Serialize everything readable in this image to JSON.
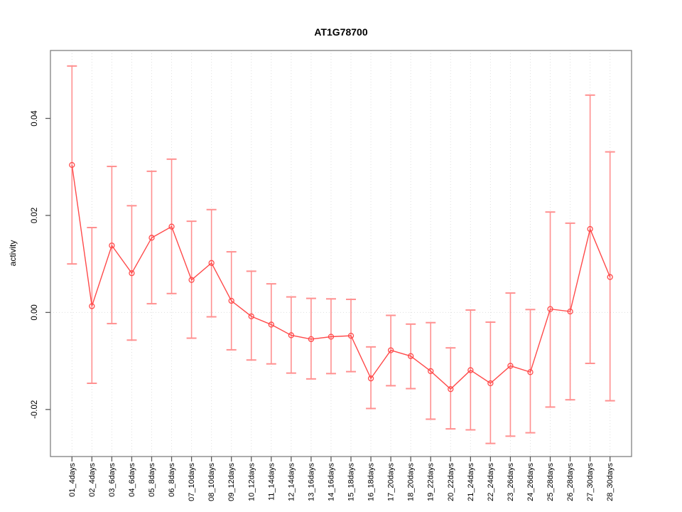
{
  "title": "AT1G78700",
  "chart_data": {
    "type": "line",
    "title": "AT1G78700",
    "xlabel": "",
    "ylabel": "activity",
    "legend_position": "none",
    "grid": "vertical dotted gridline per category plus dotted horizontal line at y=0",
    "marker": "open-circle",
    "error_bars": true,
    "categories": [
      "01_4days",
      "02_4days",
      "03_6days",
      "04_6days",
      "05_8days",
      "06_8days",
      "07_10days",
      "08_10days",
      "09_12days",
      "10_12days",
      "11_14days",
      "12_14days",
      "13_16days",
      "14_16days",
      "15_18days",
      "16_18days",
      "17_20days",
      "18_20days",
      "19_22days",
      "20_22days",
      "21_24days",
      "22_24days",
      "23_26days",
      "24_26days",
      "25_28days",
      "26_28days",
      "27_30days",
      "28_30days"
    ],
    "series": [
      {
        "name": "activity",
        "values": [
          0.0304,
          0.0013,
          0.0138,
          0.0081,
          0.0154,
          0.0177,
          0.0067,
          0.0102,
          0.0024,
          -0.0008,
          -0.0025,
          -0.0047,
          -0.0055,
          -0.005,
          -0.0048,
          -0.0136,
          -0.0078,
          -0.009,
          -0.0121,
          -0.0158,
          -0.0119,
          -0.0146,
          -0.011,
          -0.0123,
          0.0007,
          0.0002,
          0.0172,
          0.0073
        ],
        "error_high": [
          0.0508,
          0.0175,
          0.0301,
          0.022,
          0.0291,
          0.0316,
          0.0188,
          0.0212,
          0.0125,
          0.0085,
          0.0059,
          0.0032,
          0.0029,
          0.0028,
          0.0027,
          -0.0071,
          -0.0006,
          -0.0024,
          -0.0021,
          -0.0073,
          0.0005,
          -0.002,
          0.004,
          0.0006,
          0.0207,
          0.0184,
          0.0448,
          0.0331
        ],
        "error_low": [
          0.01,
          -0.0146,
          -0.0023,
          -0.0057,
          0.0018,
          0.0039,
          -0.0053,
          -0.0009,
          -0.0077,
          -0.0098,
          -0.0106,
          -0.0125,
          -0.0137,
          -0.0126,
          -0.0122,
          -0.0198,
          -0.0151,
          -0.0157,
          -0.022,
          -0.024,
          -0.0242,
          -0.027,
          -0.0255,
          -0.0248,
          -0.0195,
          -0.018,
          -0.0105,
          -0.0182
        ]
      }
    ],
    "ylim": [
      -0.0297,
      0.054
    ],
    "yticks": [
      -0.02,
      0.0,
      0.02,
      0.04
    ],
    "ytick_labels": [
      "-0.02",
      "0.00",
      "0.02",
      "0.04"
    ],
    "colors": {
      "line": "#ff4a4a",
      "marker": "#ff4a4a",
      "error_bar": "#ff9090",
      "gridline": "#dedede",
      "zero_line": "#dedede",
      "axis_box": "#818181",
      "tick": "#5a5a5a",
      "text": "#000000"
    }
  }
}
